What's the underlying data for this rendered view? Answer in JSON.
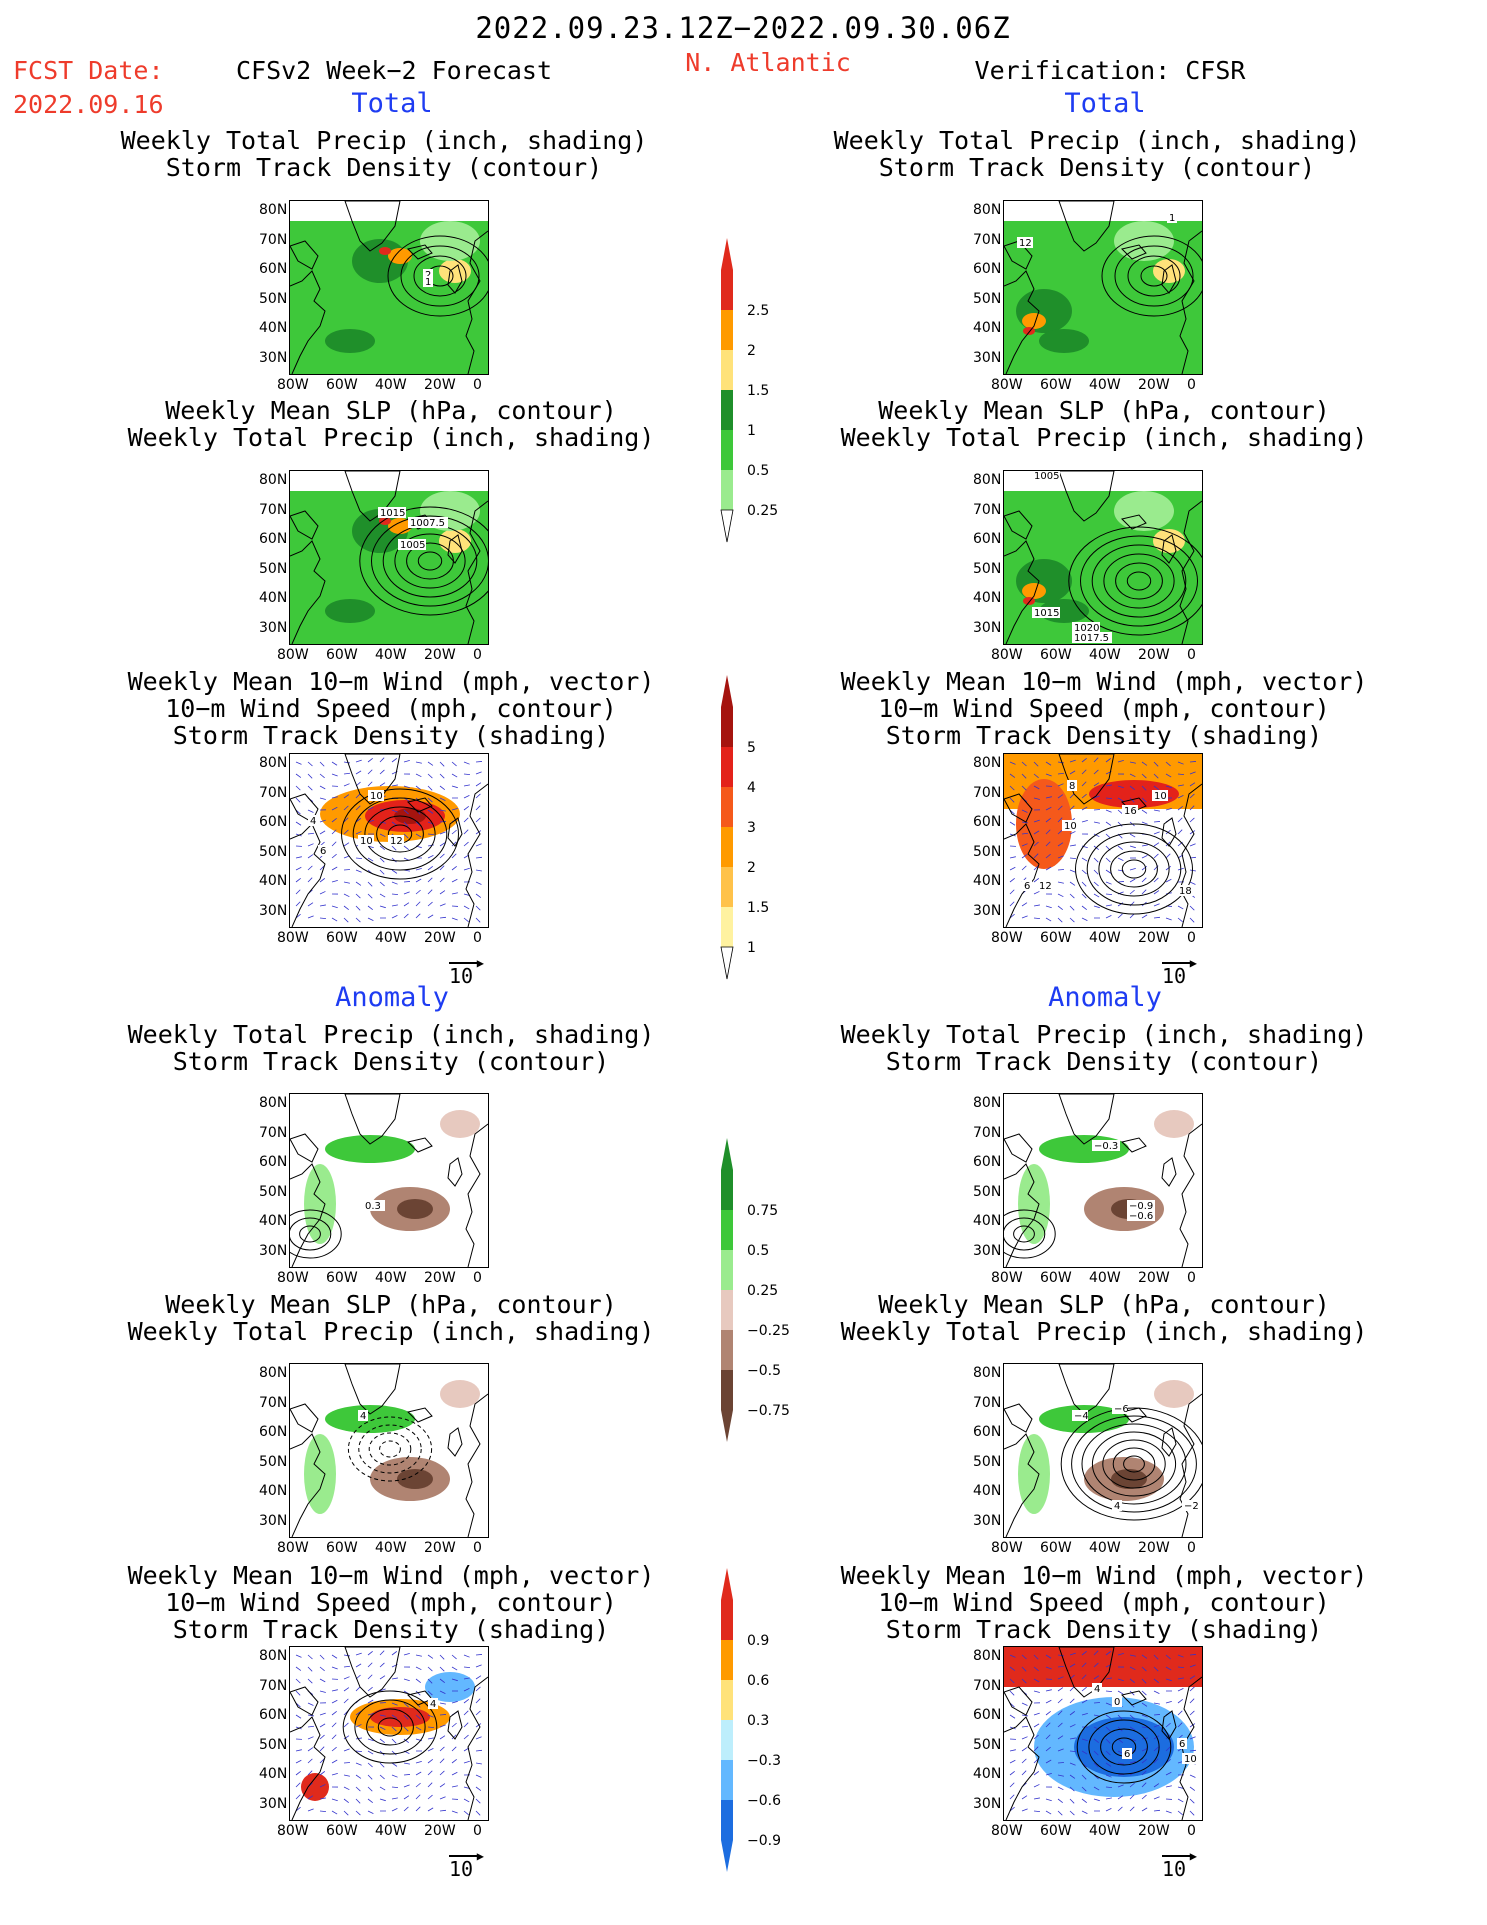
{
  "header": {
    "period": "2022.09.23.12Z−2022.09.30.06Z",
    "fcst_label": "FCST Date:",
    "fcst_date": "2022.09.16",
    "forecast_title": "CFSv2 Week−2 Forecast",
    "region": "N. Atlantic",
    "verification_title": "Verification: CFSR"
  },
  "sections": {
    "total": "Total",
    "anomaly": "Anomaly"
  },
  "panel_titles": {
    "precip_track": [
      "Weekly Total Precip (inch, shading)",
      "Storm Track Density (contour)"
    ],
    "slp_precip": [
      "Weekly Mean SLP (hPa, contour)",
      "Weekly Total Precip (inch, shading)"
    ],
    "wind_track": [
      "Weekly Mean 10−m Wind (mph, vector)",
      "10−m Wind Speed (mph, contour)",
      "Storm Track Density (shading)"
    ]
  },
  "axes": {
    "lat_labels": [
      "80N",
      "70N",
      "60N",
      "50N",
      "40N",
      "30N"
    ],
    "lon_labels": [
      "80W",
      "60W",
      "40W",
      "20W",
      "0"
    ]
  },
  "vector_reference": "10",
  "colorbars": {
    "precip_total": {
      "labels": [
        "2.5",
        "2",
        "1.5",
        "1",
        "0.5",
        "0.25"
      ],
      "colors": [
        "#e02a1c",
        "#ff9a00",
        "#ffe27a",
        "#1f8f2a",
        "#3ec83a",
        "#9aeb8e"
      ]
    },
    "storm_total": {
      "labels": [
        "5",
        "4",
        "3",
        "2",
        "1.5",
        "1"
      ],
      "colors": [
        "#a5140f",
        "#e3221a",
        "#f5591b",
        "#ff9a00",
        "#ffc24a",
        "#fff2a0"
      ]
    },
    "precip_anom": {
      "labels": [
        "0.75",
        "0.5",
        "0.25",
        "−0.25",
        "−0.5",
        "−0.75"
      ],
      "colors": [
        "#1f8f2a",
        "#3ec83a",
        "#9aeb8e",
        "#e7c9bf",
        "#b08472",
        "#6b4434"
      ]
    },
    "storm_anom": {
      "labels": [
        "0.9",
        "0.6",
        "0.3",
        "−0.3",
        "−0.6",
        "−0.9"
      ],
      "colors": [
        "#e02a1c",
        "#ff9a00",
        "#ffe27a",
        "#bdeefc",
        "#63b8ff",
        "#1c6de0"
      ]
    }
  },
  "contour_labels": {
    "p1_fcst": [
      "2",
      "1"
    ],
    "p1_cfsr": [
      "1",
      "12"
    ],
    "p2_fcst": [
      "1015",
      "1007.5",
      "1005"
    ],
    "p2_cfsr": [
      "1005",
      "1015",
      "1020",
      "1017.5"
    ],
    "p3_fcst": [
      "10",
      "10",
      "12",
      "6",
      "4"
    ],
    "p3_cfsr": [
      "8",
      "10",
      "16",
      "10",
      "12",
      "6",
      "18"
    ],
    "p4_fcst": [
      "0.3"
    ],
    "p4_cfsr": [
      "−0.3",
      "−0.9",
      "−0.6"
    ],
    "p5_fcst": [
      "4"
    ],
    "p5_cfsr": [
      "−4",
      "−6",
      "4",
      "−2"
    ],
    "p6_fcst": [
      "4"
    ],
    "p6_cfsr": [
      "4",
      "0",
      "6",
      "6",
      "10"
    ]
  }
}
